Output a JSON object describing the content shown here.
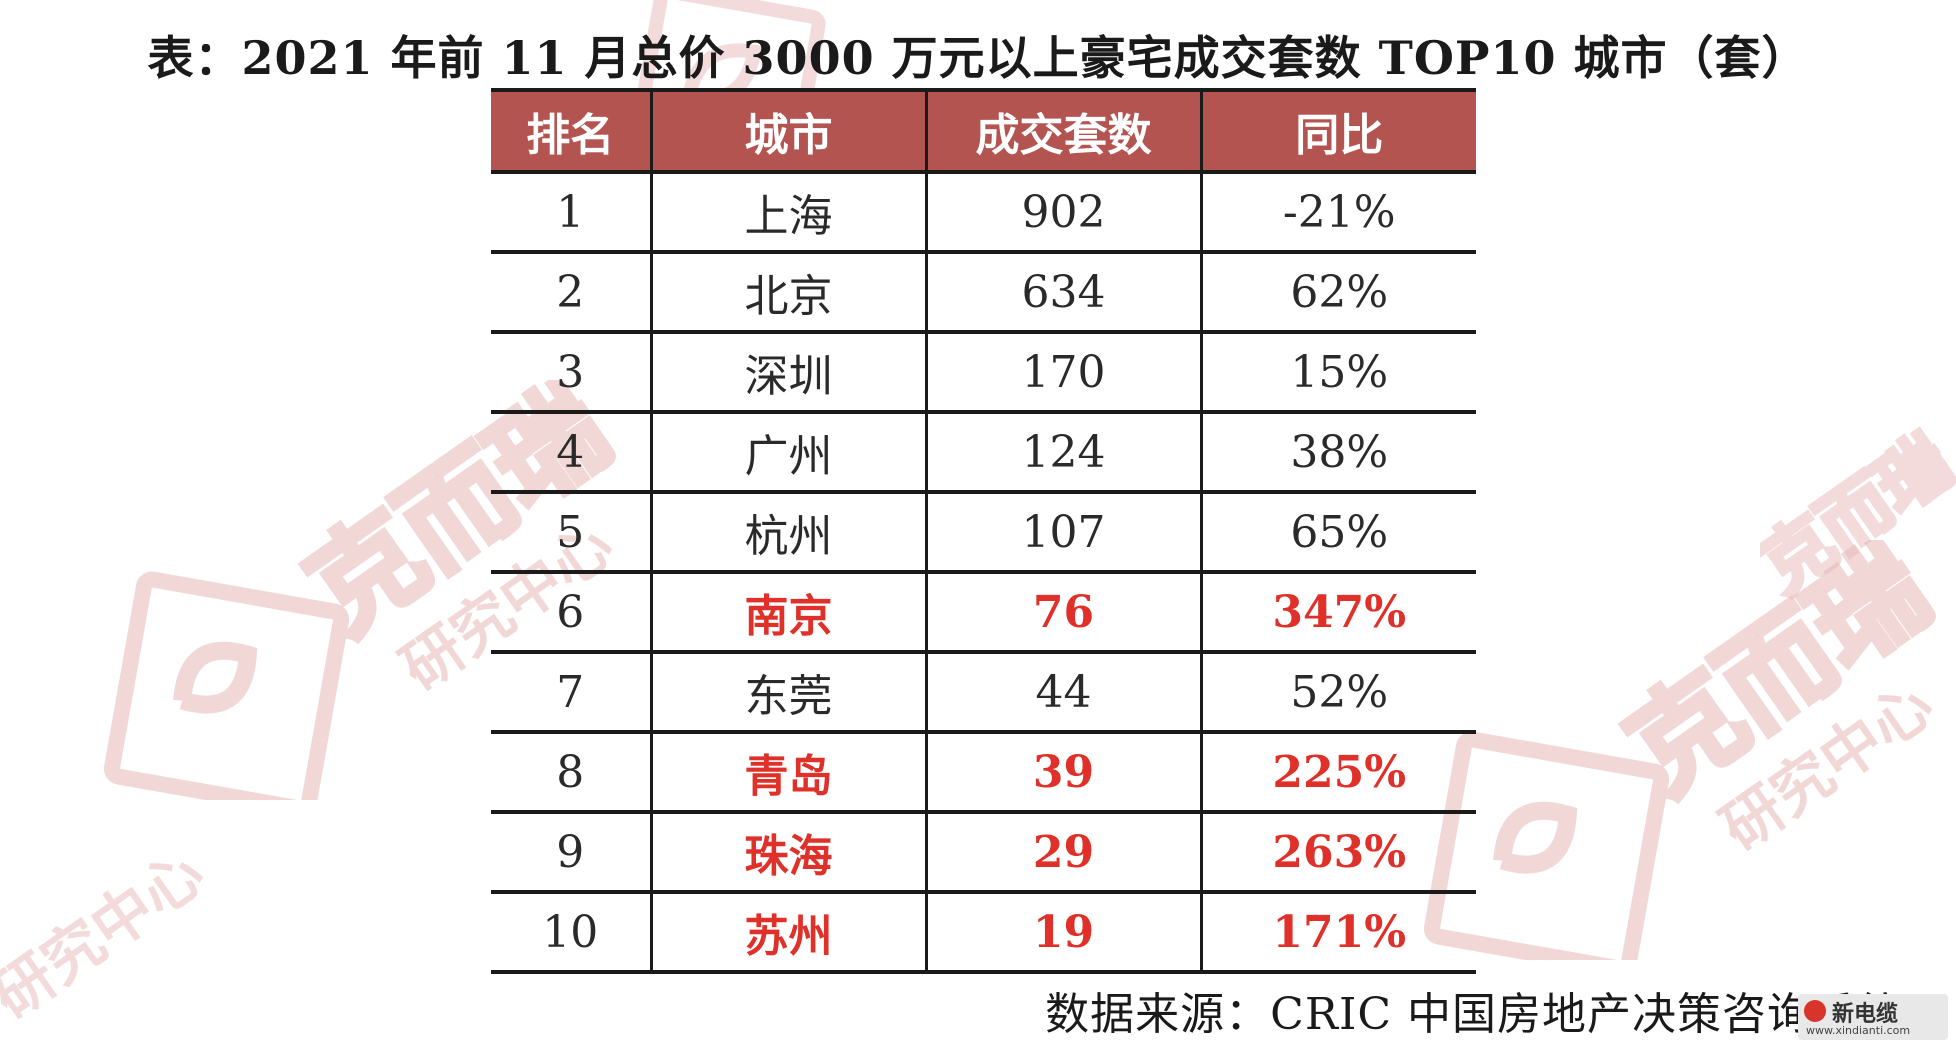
{
  "title": "表：2021 年前 11 月总价 3000 万元以上豪宅成交套数 TOP10 城市（套）",
  "table": {
    "headers": [
      "排名",
      "城市",
      "成交套数",
      "同比"
    ],
    "rows": [
      {
        "rank": "1",
        "city": "上海",
        "units": "902",
        "yoy": "-21%",
        "highlight": false
      },
      {
        "rank": "2",
        "city": "北京",
        "units": "634",
        "yoy": "62%",
        "highlight": false
      },
      {
        "rank": "3",
        "city": "深圳",
        "units": "170",
        "yoy": "15%",
        "highlight": false
      },
      {
        "rank": "4",
        "city": "广州",
        "units": "124",
        "yoy": "38%",
        "highlight": false
      },
      {
        "rank": "5",
        "city": "杭州",
        "units": "107",
        "yoy": "65%",
        "highlight": false
      },
      {
        "rank": "6",
        "city": "南京",
        "units": "76",
        "yoy": "347%",
        "highlight": true
      },
      {
        "rank": "7",
        "city": "东莞",
        "units": "44",
        "yoy": "52%",
        "highlight": false
      },
      {
        "rank": "8",
        "city": "青岛",
        "units": "39",
        "yoy": "225%",
        "highlight": true
      },
      {
        "rank": "9",
        "city": "珠海",
        "units": "29",
        "yoy": "263%",
        "highlight": true
      },
      {
        "rank": "10",
        "city": "苏州",
        "units": "19",
        "yoy": "171%",
        "highlight": true
      }
    ]
  },
  "source": "数据来源：CRIC 中国房地产决策咨询系统",
  "watermark": {
    "text": "克而瑞",
    "subtext": "研究中心",
    "color": "#e8b8b8"
  },
  "logo": {
    "name": "新电缆",
    "url": "www.xindianti.com"
  },
  "colors": {
    "header_bg": "#b45450",
    "highlight_text": "#e0302a",
    "rule": "#1a1a1a"
  }
}
